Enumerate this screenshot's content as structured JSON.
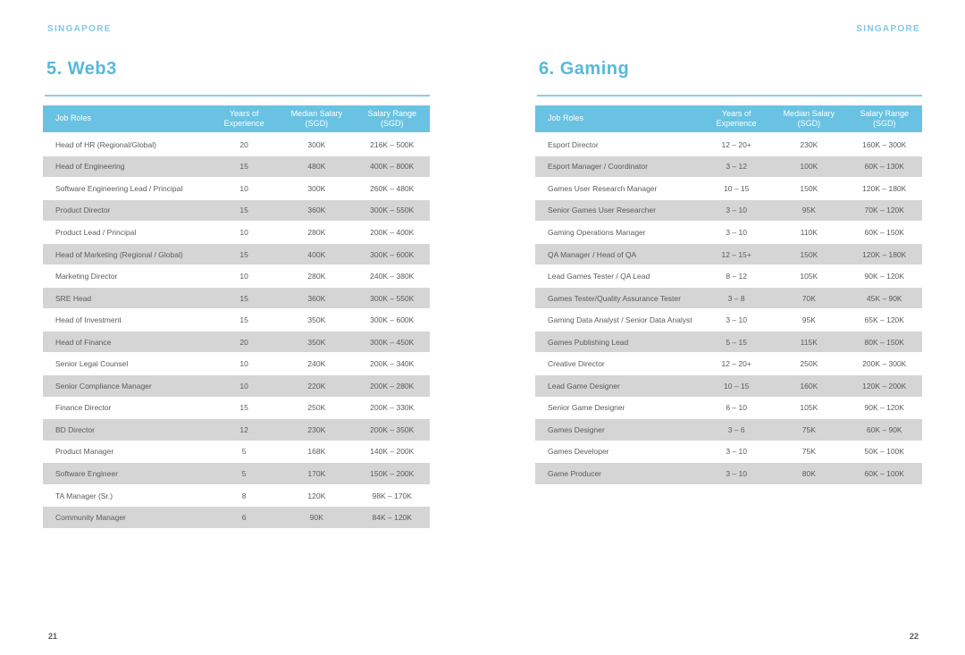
{
  "colors": {
    "accent_blue": "#56b8dc",
    "table_header_blue": "#69c2e1",
    "label_blue": "#82c7e4",
    "row_alt_gray": "#d5d5d5",
    "text_gray": "#5a5b5d"
  },
  "pages": [
    {
      "region_label": "SINGAPORE",
      "title": "5. Web3",
      "page_number": "21",
      "table": {
        "columns": [
          {
            "line1": "Job Roles",
            "line2": ""
          },
          {
            "line1": "Years of",
            "line2": "Experience"
          },
          {
            "line1": "Median Salary",
            "line2": "(SGD)"
          },
          {
            "line1": "Salary Range",
            "line2": "(SGD)"
          }
        ],
        "rows": [
          [
            "Head of HR (Regional/Global)",
            "20",
            "300K",
            "216K – 500K"
          ],
          [
            "Head of Engineering",
            "15",
            "480K",
            "400K – 800K"
          ],
          [
            "Software Engineering Lead / Principal",
            "10",
            "300K",
            "260K – 480K"
          ],
          [
            "Product Director",
            "15",
            "360K",
            "300K – 550K"
          ],
          [
            "Product Lead / Principal",
            "10",
            "280K",
            "200K – 400K"
          ],
          [
            "Head of Marketing (Regional / Global)",
            "15",
            "400K",
            "300K – 600K"
          ],
          [
            "Marketing Director",
            "10",
            "280K",
            "240K – 380K"
          ],
          [
            "SRE Head",
            "15",
            "360K",
            "300K – 550K"
          ],
          [
            "Head of Investment",
            "15",
            "350K",
            "300K – 600K"
          ],
          [
            "Head of Finance",
            "20",
            "350K",
            "300K – 450K"
          ],
          [
            "Senior Legal Counsel",
            "10",
            "240K",
            "200K – 340K"
          ],
          [
            "Senior Compliance Manager",
            "10",
            "220K",
            "200K – 280K"
          ],
          [
            "Finance Director",
            "15",
            "250K",
            "200K – 330K"
          ],
          [
            "BD Director",
            "12",
            "230K",
            "200K – 350K"
          ],
          [
            "Product Manager",
            "5",
            "168K",
            "140K – 200K"
          ],
          [
            "Software Engineer",
            "5",
            "170K",
            "150K – 200K"
          ],
          [
            "TA Manager (Sr.)",
            "8",
            "120K",
            "98K – 170K"
          ],
          [
            "Community Manager",
            "6",
            "90K",
            "84K – 120K"
          ]
        ]
      }
    },
    {
      "region_label": "SINGAPORE",
      "title": "6. Gaming",
      "page_number": "22",
      "table": {
        "columns": [
          {
            "line1": "Job Roles",
            "line2": ""
          },
          {
            "line1": "Years of",
            "line2": "Experience"
          },
          {
            "line1": "Median Salary",
            "line2": "(SGD)"
          },
          {
            "line1": "Salary Range",
            "line2": "(SGD)"
          }
        ],
        "rows": [
          [
            "Esport Director",
            "12 – 20+",
            "230K",
            "160K – 300K"
          ],
          [
            "Esport Manager / Coordinator",
            "3 – 12",
            "100K",
            "60K – 130K"
          ],
          [
            "Games User Research Manager",
            "10 – 15",
            "150K",
            "120K – 180K"
          ],
          [
            "Senior Games User Researcher",
            "3 – 10",
            "95K",
            "70K – 120K"
          ],
          [
            "Gaming Operations Manager",
            "3 – 10",
            "110K",
            "60K – 150K"
          ],
          [
            "QA Manager / Head of QA",
            "12 – 15+",
            "150K",
            "120K – 180K"
          ],
          [
            "Lead Games Tester / QA Lead",
            "8 – 12",
            "105K",
            "90K – 120K"
          ],
          [
            "Games Tester/Quality Assurance Tester",
            "3 – 8",
            "70K",
            "45K – 90K"
          ],
          [
            "Gaming Data Analyst / Senior Data Analyst",
            "3 – 10",
            "95K",
            "65K – 120K"
          ],
          [
            "Games Publishing Lead",
            "5 – 15",
            "115K",
            "80K – 150K"
          ],
          [
            "Creative Director",
            "12 – 20+",
            "250K",
            "200K – 300K"
          ],
          [
            "Lead Game Designer",
            "10 – 15",
            "160K",
            "120K – 200K"
          ],
          [
            "Senior Game Designer",
            "6 – 10",
            "105K",
            "90K – 120K"
          ],
          [
            "Games Designer",
            "3 – 6",
            "75K",
            "60K – 90K"
          ],
          [
            "Games Developer",
            "3 – 10",
            "75K",
            "50K – 100K"
          ],
          [
            "Game Producer",
            "3 – 10",
            "80K",
            "60K – 100K"
          ]
        ]
      }
    }
  ]
}
